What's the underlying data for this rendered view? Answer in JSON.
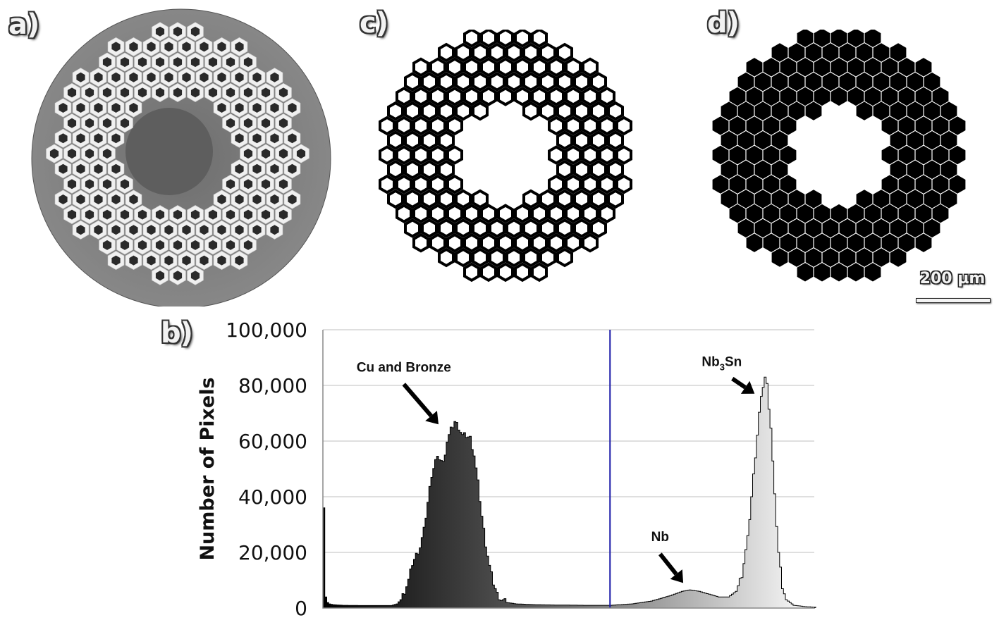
{
  "panels": {
    "a": {
      "label": "a)"
    },
    "b": {
      "label": "b)"
    },
    "c": {
      "label": "c)"
    },
    "d": {
      "label": "d)"
    }
  },
  "scalebar": {
    "label": "200 µm"
  },
  "colors": {
    "threshold_line": "#1a1aa8",
    "gridline": "#bfbfbf",
    "matrix_gray": "#7a7a7a",
    "filament_white": "#f0f0f0"
  },
  "chart_data": {
    "type": "bar",
    "ylabel": "Number of Pixels",
    "ylim": [
      0,
      100000
    ],
    "xlim": [
      0,
      255
    ],
    "yticks": [
      "0",
      "20,000",
      "40,000",
      "60,000",
      "80,000",
      "100,000"
    ],
    "ytick_values": [
      0,
      20000,
      40000,
      60000,
      80000,
      100000
    ],
    "grid": true,
    "threshold_x": 149,
    "bins": [
      [
        0,
        36000
      ],
      [
        1,
        4000
      ],
      [
        2,
        2000
      ],
      [
        3,
        1500
      ],
      [
        5,
        1200
      ],
      [
        10,
        1000
      ],
      [
        20,
        900
      ],
      [
        30,
        900
      ],
      [
        35,
        900
      ],
      [
        38,
        1500
      ],
      [
        40,
        3000
      ],
      [
        42,
        6000
      ],
      [
        44,
        10000
      ],
      [
        46,
        16000
      ],
      [
        48,
        19000
      ],
      [
        50,
        22000
      ],
      [
        52,
        28000
      ],
      [
        54,
        38000
      ],
      [
        56,
        48000
      ],
      [
        58,
        53000
      ],
      [
        60,
        54000
      ],
      [
        62,
        52000
      ],
      [
        64,
        60000
      ],
      [
        66,
        64000
      ],
      [
        68,
        67000
      ],
      [
        70,
        65000
      ],
      [
        72,
        62000
      ],
      [
        74,
        62000
      ],
      [
        76,
        61000
      ],
      [
        78,
        55000
      ],
      [
        80,
        45000
      ],
      [
        82,
        33000
      ],
      [
        84,
        23000
      ],
      [
        86,
        15000
      ],
      [
        88,
        9000
      ],
      [
        90,
        5000
      ],
      [
        92,
        3000
      ],
      [
        95,
        2000
      ],
      [
        100,
        1500
      ],
      [
        110,
        1200
      ],
      [
        120,
        1100
      ],
      [
        135,
        1000
      ],
      [
        149,
        1000
      ],
      [
        160,
        1500
      ],
      [
        170,
        2500
      ],
      [
        180,
        4500
      ],
      [
        186,
        6000
      ],
      [
        190,
        6500
      ],
      [
        195,
        6000
      ],
      [
        200,
        5000
      ],
      [
        205,
        4000
      ],
      [
        210,
        4000
      ],
      [
        214,
        6000
      ],
      [
        217,
        12000
      ],
      [
        220,
        25000
      ],
      [
        222,
        40000
      ],
      [
        224,
        55000
      ],
      [
        226,
        70000
      ],
      [
        228,
        80000
      ],
      [
        229,
        83000
      ],
      [
        230,
        80000
      ],
      [
        232,
        65000
      ],
      [
        234,
        40000
      ],
      [
        236,
        20000
      ],
      [
        238,
        8000
      ],
      [
        240,
        3000
      ],
      [
        244,
        1000
      ],
      [
        250,
        500
      ],
      [
        255,
        300
      ]
    ],
    "annotations": [
      {
        "text": "Cu and Bronze",
        "x": 42,
        "y": 85000,
        "ax": 60,
        "ay": 66000
      },
      {
        "text": "Nb",
        "x": 175,
        "y": 24000,
        "ax": 187,
        "ay": 9000
      },
      {
        "text": "Nb3Sn",
        "text_main": "Nb",
        "text_sub": "3",
        "text_tail": "Sn",
        "x": 207,
        "y": 87000,
        "ax": 224,
        "ay": 77000
      }
    ]
  }
}
